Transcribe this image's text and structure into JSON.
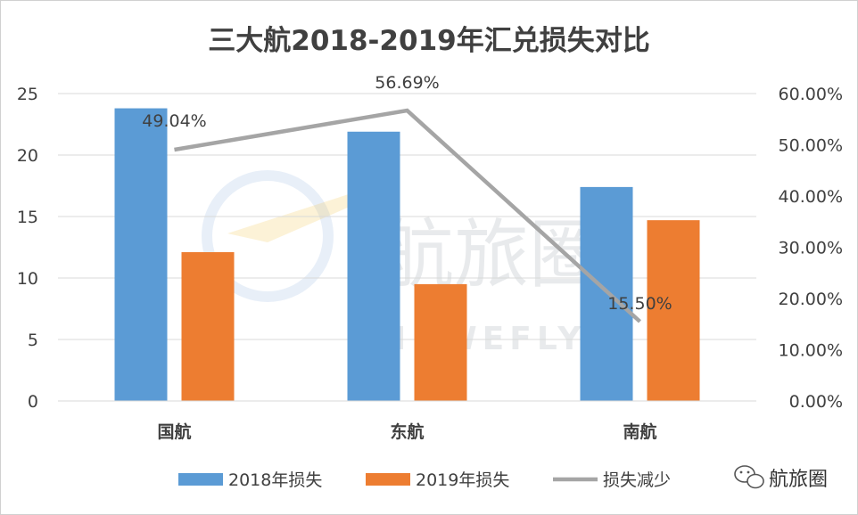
{
  "chart_data": {
    "type": "bar",
    "title": "三大航2018-2019年汇兑损失对比",
    "categories": [
      "国航",
      "东航",
      "南航"
    ],
    "series": [
      {
        "name": "2018年损失",
        "type": "bar",
        "axis": "left",
        "color": "#5b9bd5",
        "values": [
          23.8,
          21.9,
          17.4
        ]
      },
      {
        "name": "2019年损失",
        "type": "bar",
        "axis": "left",
        "color": "#ed7d31",
        "values": [
          12.1,
          9.5,
          14.7
        ]
      },
      {
        "name": "损失减少",
        "type": "line",
        "axis": "right",
        "color": "#a5a5a5",
        "values": [
          0.4904,
          0.5669,
          0.155
        ],
        "labels": [
          "49.04%",
          "56.69%",
          "15.50%"
        ]
      }
    ],
    "y_left": {
      "min": 0,
      "max": 25,
      "ticks": [
        "0",
        "5",
        "10",
        "15",
        "20",
        "25"
      ]
    },
    "y_right": {
      "min": 0,
      "max": 0.6,
      "ticks": [
        "0.00%",
        "10.00%",
        "20.00%",
        "30.00%",
        "40.00%",
        "50.00%",
        "60.00%"
      ]
    },
    "gridlines": true,
    "legend_position": "bottom"
  },
  "watermark": {
    "chinese": "航旅圈",
    "english": "AIRWEFLY"
  },
  "brand": {
    "name": "航旅圈",
    "icon": "wechat-icon"
  }
}
